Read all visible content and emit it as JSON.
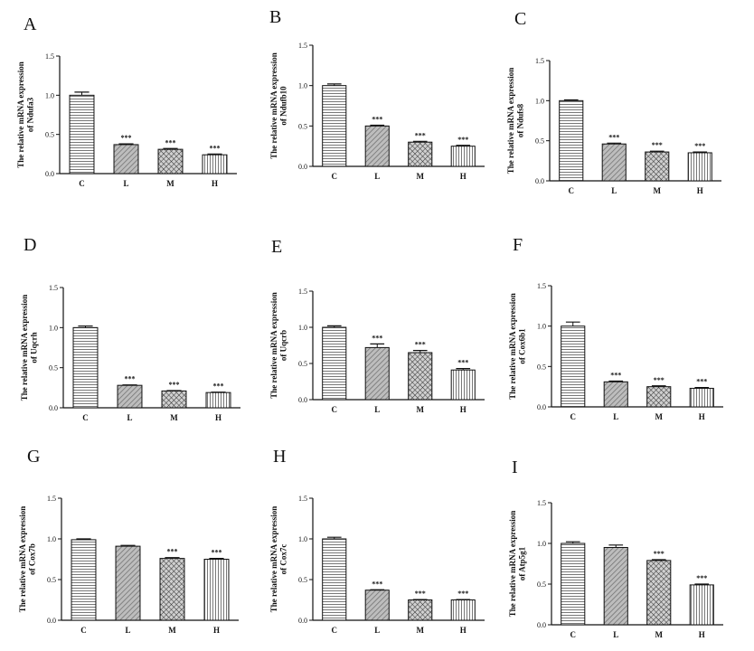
{
  "colors": {
    "ink": "#111111",
    "bar_fill": "#ffffff"
  },
  "chart_data": [
    {
      "panel_label": "A",
      "type": "bar",
      "title": "",
      "xlabel": "",
      "ylabel_line1": "The relative mRNA expression",
      "ylabel_line2": "of Ndufa3",
      "categories": [
        "C",
        "L",
        "M",
        "H"
      ],
      "values": [
        1.0,
        0.37,
        0.31,
        0.24
      ],
      "errors": [
        0.04,
        0.01,
        0.01,
        0.01
      ],
      "significance": [
        "",
        "***",
        "***",
        "***"
      ],
      "ylim": [
        0,
        1.5
      ],
      "yticks": [
        "0.0",
        "0.5",
        "1.0",
        "1.5"
      ],
      "grid": false
    },
    {
      "panel_label": "B",
      "type": "bar",
      "title": "",
      "xlabel": "",
      "ylabel_line1": "The relative mRNA expression",
      "ylabel_line2": "of Ndufb10",
      "categories": [
        "C",
        "L",
        "M",
        "H"
      ],
      "values": [
        1.0,
        0.5,
        0.3,
        0.25
      ],
      "errors": [
        0.02,
        0.01,
        0.01,
        0.01
      ],
      "significance": [
        "",
        "***",
        "***",
        "***"
      ],
      "ylim": [
        0,
        1.5
      ],
      "yticks": [
        "0.0",
        "0.5",
        "1.0",
        "1.5"
      ],
      "grid": false
    },
    {
      "panel_label": "C",
      "type": "bar",
      "title": "",
      "xlabel": "",
      "ylabel_line1": "The relative mRNA expression",
      "ylabel_line2": "of Ndufs8",
      "categories": [
        "C",
        "L",
        "M",
        "H"
      ],
      "values": [
        1.0,
        0.46,
        0.36,
        0.35
      ],
      "errors": [
        0.01,
        0.01,
        0.01,
        0.01
      ],
      "significance": [
        "",
        "***",
        "***",
        "***"
      ],
      "ylim": [
        0,
        1.5
      ],
      "yticks": [
        "0.0",
        "0.5",
        "1.0",
        "1.5"
      ],
      "grid": false
    },
    {
      "panel_label": "D",
      "type": "bar",
      "title": "",
      "xlabel": "",
      "ylabel_line1": "The relative mRNA expression",
      "ylabel_line2": "of Uqcrh",
      "categories": [
        "C",
        "L",
        "M",
        "H"
      ],
      "values": [
        1.0,
        0.28,
        0.21,
        0.19
      ],
      "errors": [
        0.02,
        0.005,
        0.005,
        0.005
      ],
      "significance": [
        "",
        "***",
        "***",
        "***"
      ],
      "ylim": [
        0,
        1.5
      ],
      "yticks": [
        "0.0",
        "0.5",
        "1.0",
        "1.5"
      ],
      "grid": false
    },
    {
      "panel_label": "E",
      "type": "bar",
      "title": "",
      "xlabel": "",
      "ylabel_line1": "The relative mRNA expression",
      "ylabel_line2": "of Uqcrb",
      "categories": [
        "C",
        "L",
        "M",
        "H"
      ],
      "values": [
        1.0,
        0.72,
        0.65,
        0.41
      ],
      "errors": [
        0.02,
        0.05,
        0.03,
        0.02
      ],
      "significance": [
        "",
        "***",
        "***",
        "***"
      ],
      "ylim": [
        0,
        1.5
      ],
      "yticks": [
        "0.0",
        "0.5",
        "1.0",
        "1.5"
      ],
      "grid": false
    },
    {
      "panel_label": "F",
      "type": "bar",
      "title": "",
      "xlabel": "",
      "ylabel_line1": "The relative mRNA expression",
      "ylabel_line2": "of Cox6b1",
      "categories": [
        "C",
        "L",
        "M",
        "H"
      ],
      "values": [
        1.0,
        0.31,
        0.25,
        0.23
      ],
      "errors": [
        0.05,
        0.01,
        0.01,
        0.01
      ],
      "significance": [
        "",
        "***",
        "***",
        "***"
      ],
      "ylim": [
        0,
        1.5
      ],
      "yticks": [
        "0.0",
        "0.5",
        "1.0",
        "1.5"
      ],
      "grid": false
    },
    {
      "panel_label": "G",
      "type": "bar",
      "title": "",
      "xlabel": "",
      "ylabel_line1": "The relative mRNA expression",
      "ylabel_line2": "of Cox7b",
      "categories": [
        "C",
        "L",
        "M",
        "H"
      ],
      "values": [
        0.99,
        0.91,
        0.76,
        0.75
      ],
      "errors": [
        0.01,
        0.01,
        0.01,
        0.01
      ],
      "significance": [
        "",
        "",
        "***",
        "***"
      ],
      "ylim": [
        0,
        1.5
      ],
      "yticks": [
        "0.0",
        "0.5",
        "1.0",
        "1.5"
      ],
      "grid": false
    },
    {
      "panel_label": "H",
      "type": "bar",
      "title": "",
      "xlabel": "",
      "ylabel_line1": "The relative mRNA expression",
      "ylabel_line2": "of Cox7c",
      "categories": [
        "C",
        "L",
        "M",
        "H"
      ],
      "values": [
        1.0,
        0.37,
        0.25,
        0.25
      ],
      "errors": [
        0.02,
        0.005,
        0.005,
        0.005
      ],
      "significance": [
        "",
        "***",
        "***",
        "***"
      ],
      "ylim": [
        0,
        1.5
      ],
      "yticks": [
        "0.0",
        "0.5",
        "1.0",
        "1.5"
      ],
      "grid": false
    },
    {
      "panel_label": "I",
      "type": "bar",
      "title": "",
      "xlabel": "",
      "ylabel_line1": "The relative mRNA expression",
      "ylabel_line2": "of Atp5g1",
      "categories": [
        "C",
        "L",
        "M",
        "H"
      ],
      "values": [
        1.0,
        0.95,
        0.79,
        0.49
      ],
      "errors": [
        0.02,
        0.03,
        0.01,
        0.01
      ],
      "significance": [
        "",
        "",
        "***",
        "***"
      ],
      "ylim": [
        0,
        1.5
      ],
      "yticks": [
        "0.0",
        "0.5",
        "1.0",
        "1.5"
      ],
      "grid": false
    }
  ]
}
